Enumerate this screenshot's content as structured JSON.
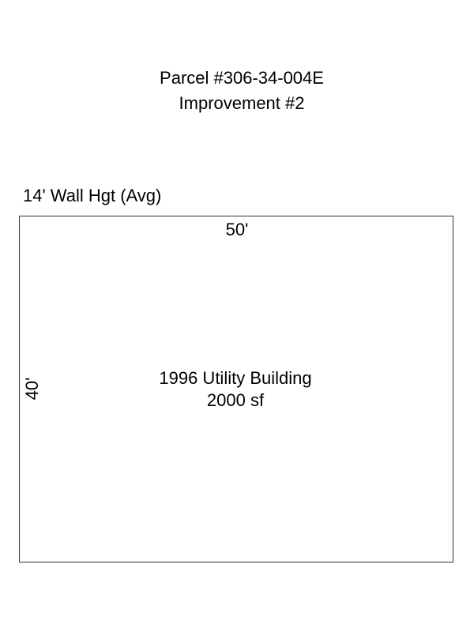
{
  "header": {
    "parcel": "Parcel #306-34-004E",
    "improvement": "Improvement #2"
  },
  "building": {
    "wall_height": "14' Wall Hgt (Avg)",
    "width_label": "50'",
    "depth_label": "40'",
    "description": "1996 Utility Building",
    "area": "2000 sf"
  }
}
